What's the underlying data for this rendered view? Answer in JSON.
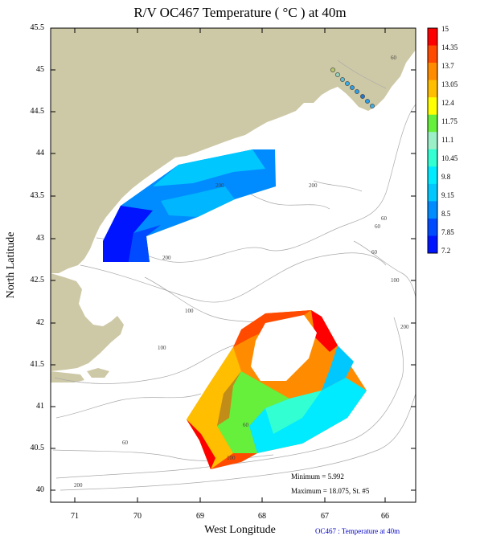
{
  "title": "R/V OC467 Temperature ( °C ) at 40m",
  "x_axis": {
    "label": "West Longitude",
    "ticks": [
      "71",
      "70",
      "69",
      "68",
      "67",
      "66"
    ]
  },
  "y_axis": {
    "label": "North Latitude",
    "ticks": [
      "45.5",
      "45",
      "44.5",
      "44",
      "43.5",
      "43",
      "42.5",
      "42",
      "41.5",
      "41",
      "40.5",
      "40"
    ]
  },
  "colorbar": {
    "labels": [
      "15",
      "14.35",
      "13.7",
      "13.05",
      "12.4",
      "11.75",
      "11.1",
      "10.45",
      "9.8",
      "9.15",
      "8.5",
      "7.85",
      "7.2"
    ],
    "colors": [
      "#ff0000",
      "#ff4a00",
      "#ff8c00",
      "#ffbe00",
      "#ffff00",
      "#66f03c",
      "#9cf0c8",
      "#32ffd2",
      "#00ebff",
      "#00c8ff",
      "#008cff",
      "#004bff",
      "#0014ff"
    ]
  },
  "land_color": "#cdc9a6",
  "contour_labels": [
    "60",
    "60",
    "60",
    "200",
    "200",
    "200",
    "100",
    "100",
    "100",
    "60",
    "60",
    "200",
    "100",
    "60",
    "200"
  ],
  "stats": {
    "minimum": "Minimum = 5.992",
    "maximum": "Maximum = 18.075, St. #5"
  },
  "footer": "OC467 : Temperature at 40m"
}
